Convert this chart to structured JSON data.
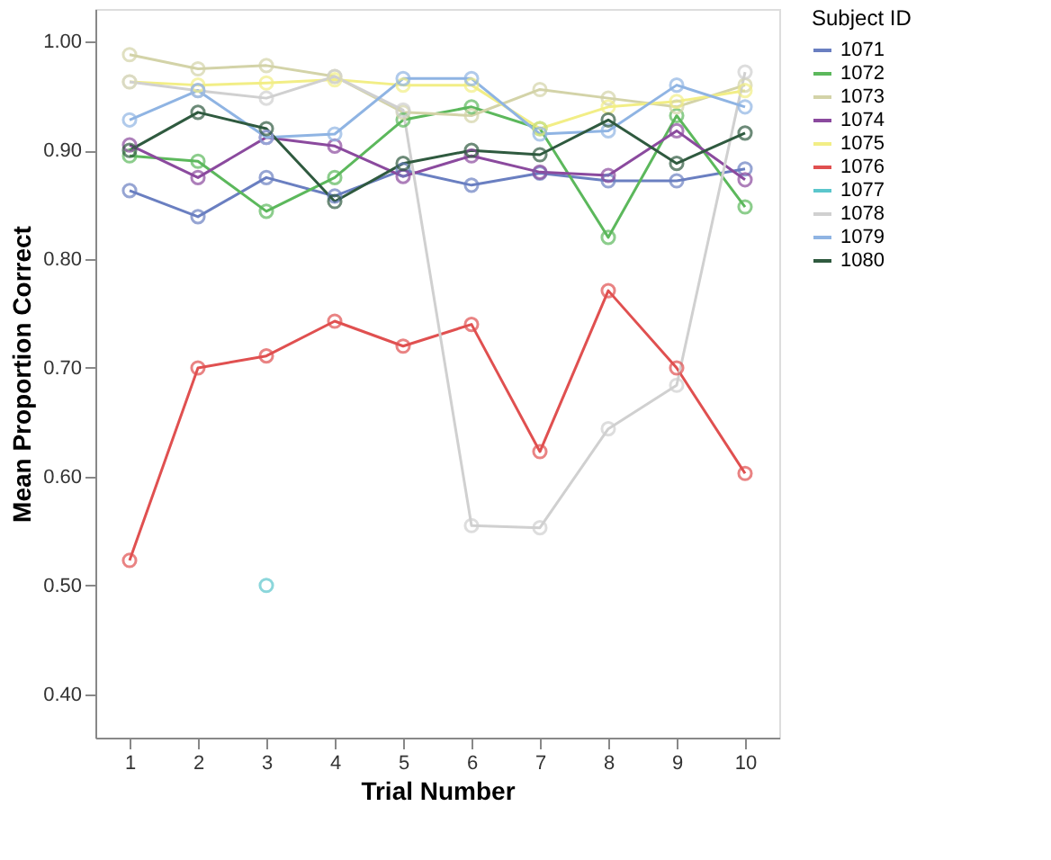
{
  "chart_data": {
    "type": "line",
    "xlabel": "Trial Number",
    "ylabel": "Mean Proportion Correct",
    "legend_title": "Subject ID",
    "legend": "top right",
    "marker": "circle",
    "grid": false,
    "x": [
      1,
      2,
      3,
      4,
      5,
      6,
      7,
      8,
      9,
      10
    ],
    "xlim": [
      0.5,
      10.5
    ],
    "xticks": [
      1,
      2,
      3,
      4,
      5,
      6,
      7,
      8,
      9,
      10
    ],
    "ylim": [
      0.36,
      1.03
    ],
    "yticks": [
      {
        "value": 0.4,
        "label": "0.40"
      },
      {
        "value": 0.5,
        "label": "0.50"
      },
      {
        "value": 0.6,
        "label": "0.60"
      },
      {
        "value": 0.7,
        "label": "0.70"
      },
      {
        "value": 0.8,
        "label": "0.80"
      },
      {
        "value": 0.9,
        "label": "0.90"
      },
      {
        "value": 1.0,
        "label": "1.00"
      }
    ],
    "series": [
      {
        "name": "1071",
        "color": "#6a7fc1",
        "values": [
          0.863,
          0.839,
          0.875,
          0.858,
          0.882,
          0.868,
          0.879,
          0.872,
          0.872,
          0.883
        ]
      },
      {
        "name": "1072",
        "color": "#5cb85c",
        "values": [
          0.895,
          0.89,
          0.844,
          0.875,
          0.928,
          0.94,
          0.92,
          0.82,
          0.932,
          0.848
        ]
      },
      {
        "name": "1073",
        "color": "#d3d3a8",
        "values": [
          0.988,
          0.975,
          0.978,
          0.968,
          0.935,
          0.932,
          0.956,
          0.948,
          0.94,
          0.96
        ]
      },
      {
        "name": "1074",
        "color": "#8b4a9e",
        "values": [
          0.905,
          0.875,
          0.912,
          0.904,
          0.876,
          0.895,
          0.88,
          0.877,
          0.918,
          0.873
        ]
      },
      {
        "name": "1075",
        "color": "#f2ee86",
        "values": [
          0.963,
          0.96,
          0.962,
          0.965,
          0.96,
          0.96,
          0.92,
          0.94,
          0.945,
          0.955
        ]
      },
      {
        "name": "1076",
        "color": "#e05050",
        "values": [
          0.523,
          0.7,
          0.711,
          0.743,
          0.72,
          0.74,
          0.623,
          0.771,
          0.7,
          0.603
        ]
      },
      {
        "name": "1077",
        "color": "#5bc6cc",
        "values": [
          null,
          null,
          0.5,
          null,
          null,
          null,
          null,
          null,
          null,
          null
        ]
      },
      {
        "name": "1078",
        "color": "#d0d0d0",
        "values": [
          0.963,
          0.955,
          0.948,
          0.968,
          0.937,
          0.555,
          0.553,
          0.644,
          0.684,
          0.972
        ]
      },
      {
        "name": "1079",
        "color": "#8fb4e3",
        "values": [
          0.928,
          0.955,
          0.912,
          0.915,
          0.966,
          0.966,
          0.915,
          0.918,
          0.96,
          0.94
        ]
      },
      {
        "name": "1080",
        "color": "#2f5a3f",
        "values": [
          0.9,
          0.935,
          0.92,
          0.853,
          0.888,
          0.9,
          0.896,
          0.928,
          0.888,
          0.916
        ]
      }
    ]
  }
}
